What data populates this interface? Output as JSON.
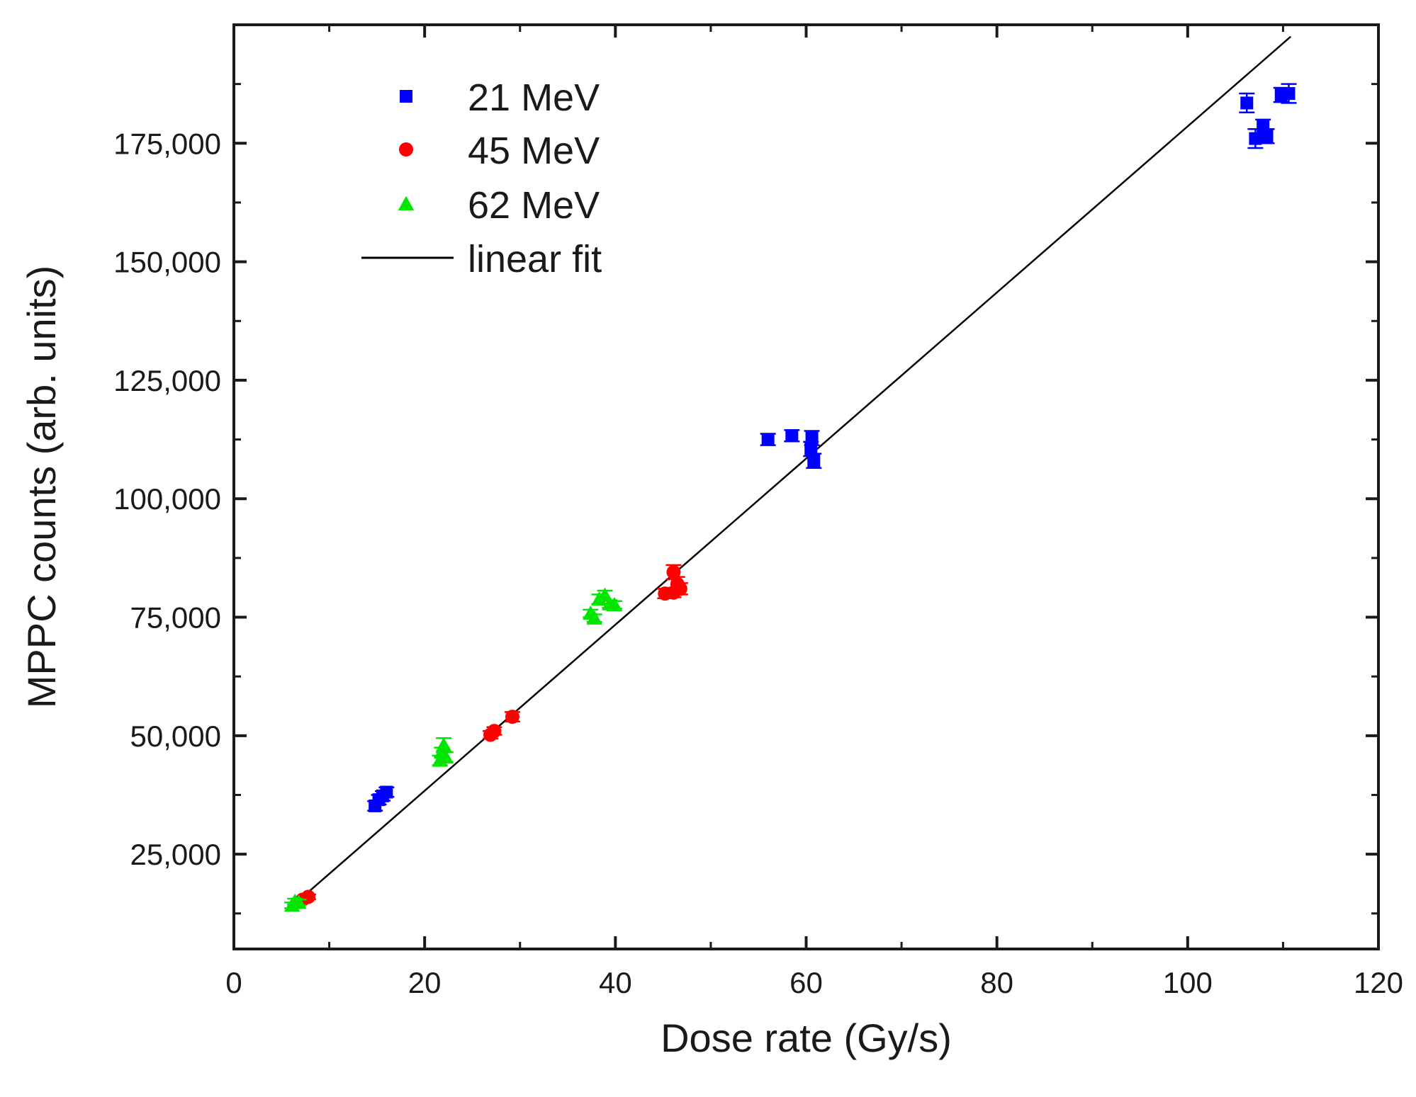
{
  "chart_data": {
    "type": "scatter",
    "title": "",
    "xlabel": "Dose rate (Gy/s)",
    "ylabel": "MPPC counts (arb. units)",
    "xlim": [
      0,
      120
    ],
    "ylim": [
      5000,
      200000
    ],
    "x_ticks": [
      0,
      20,
      40,
      60,
      80,
      100,
      120
    ],
    "x_tick_labels": [
      "0",
      "20",
      "40",
      "60",
      "80",
      "100",
      "120"
    ],
    "y_ticks": [
      25000,
      50000,
      75000,
      100000,
      125000,
      150000,
      175000
    ],
    "y_tick_labels": [
      "25,000",
      "50,000",
      "75,000",
      "100,000",
      "125,000",
      "150,000",
      "175,000"
    ],
    "grid": false,
    "legend_position": "top-left",
    "series": [
      {
        "name": "21 MeV",
        "marker": "square",
        "color": "#0000ff",
        "points": [
          {
            "x": 14.8,
            "y": 35200,
            "err": 1000
          },
          {
            "x": 15.2,
            "y": 36500,
            "err": 1000
          },
          {
            "x": 15.6,
            "y": 37300,
            "err": 1000
          },
          {
            "x": 16.0,
            "y": 38100,
            "err": 1000
          },
          {
            "x": 56.0,
            "y": 112500,
            "err": 1200
          },
          {
            "x": 58.5,
            "y": 113300,
            "err": 1200
          },
          {
            "x": 60.5,
            "y": 110500,
            "err": 1500
          },
          {
            "x": 60.8,
            "y": 108000,
            "err": 1500
          },
          {
            "x": 60.6,
            "y": 112800,
            "err": 1500
          },
          {
            "x": 106.2,
            "y": 183500,
            "err": 2000
          },
          {
            "x": 107.1,
            "y": 176000,
            "err": 2000
          },
          {
            "x": 107.9,
            "y": 178500,
            "err": 1500
          },
          {
            "x": 108.3,
            "y": 176500,
            "err": 1500
          },
          {
            "x": 109.8,
            "y": 185200,
            "err": 1500
          },
          {
            "x": 110.6,
            "y": 185500,
            "err": 2000
          }
        ]
      },
      {
        "name": "45 MeV",
        "marker": "circle",
        "color": "#ff0000",
        "points": [
          {
            "x": 7.2,
            "y": 15400,
            "err": 500
          },
          {
            "x": 7.8,
            "y": 16000,
            "err": 500
          },
          {
            "x": 26.9,
            "y": 50200,
            "err": 800
          },
          {
            "x": 27.3,
            "y": 51000,
            "err": 800
          },
          {
            "x": 29.2,
            "y": 54000,
            "err": 1000
          },
          {
            "x": 45.2,
            "y": 80000,
            "err": 1000
          },
          {
            "x": 46.1,
            "y": 80200,
            "err": 1000
          },
          {
            "x": 46.1,
            "y": 84500,
            "err": 1500
          },
          {
            "x": 46.5,
            "y": 82000,
            "err": 1500
          },
          {
            "x": 46.8,
            "y": 81000,
            "err": 1200
          }
        ]
      },
      {
        "name": "62 MeV",
        "marker": "triangle",
        "color": "#00e600",
        "points": [
          {
            "x": 6.1,
            "y": 14200,
            "err": 600
          },
          {
            "x": 6.4,
            "y": 15000,
            "err": 600
          },
          {
            "x": 6.8,
            "y": 14800,
            "err": 600
          },
          {
            "x": 21.6,
            "y": 44800,
            "err": 1000
          },
          {
            "x": 21.8,
            "y": 46500,
            "err": 1000
          },
          {
            "x": 22.0,
            "y": 48000,
            "err": 1500
          },
          {
            "x": 22.2,
            "y": 45500,
            "err": 1000
          },
          {
            "x": 37.4,
            "y": 75800,
            "err": 800
          },
          {
            "x": 37.8,
            "y": 74800,
            "err": 800
          },
          {
            "x": 38.3,
            "y": 78800,
            "err": 1000
          },
          {
            "x": 38.9,
            "y": 79600,
            "err": 1000
          },
          {
            "x": 39.4,
            "y": 77800,
            "err": 800
          },
          {
            "x": 39.9,
            "y": 77600,
            "err": 800
          }
        ]
      }
    ],
    "fit": {
      "name": "linear fit",
      "color": "#000000",
      "x": [
        7.0,
        110.8
      ],
      "y": [
        15600,
        197500
      ]
    }
  }
}
